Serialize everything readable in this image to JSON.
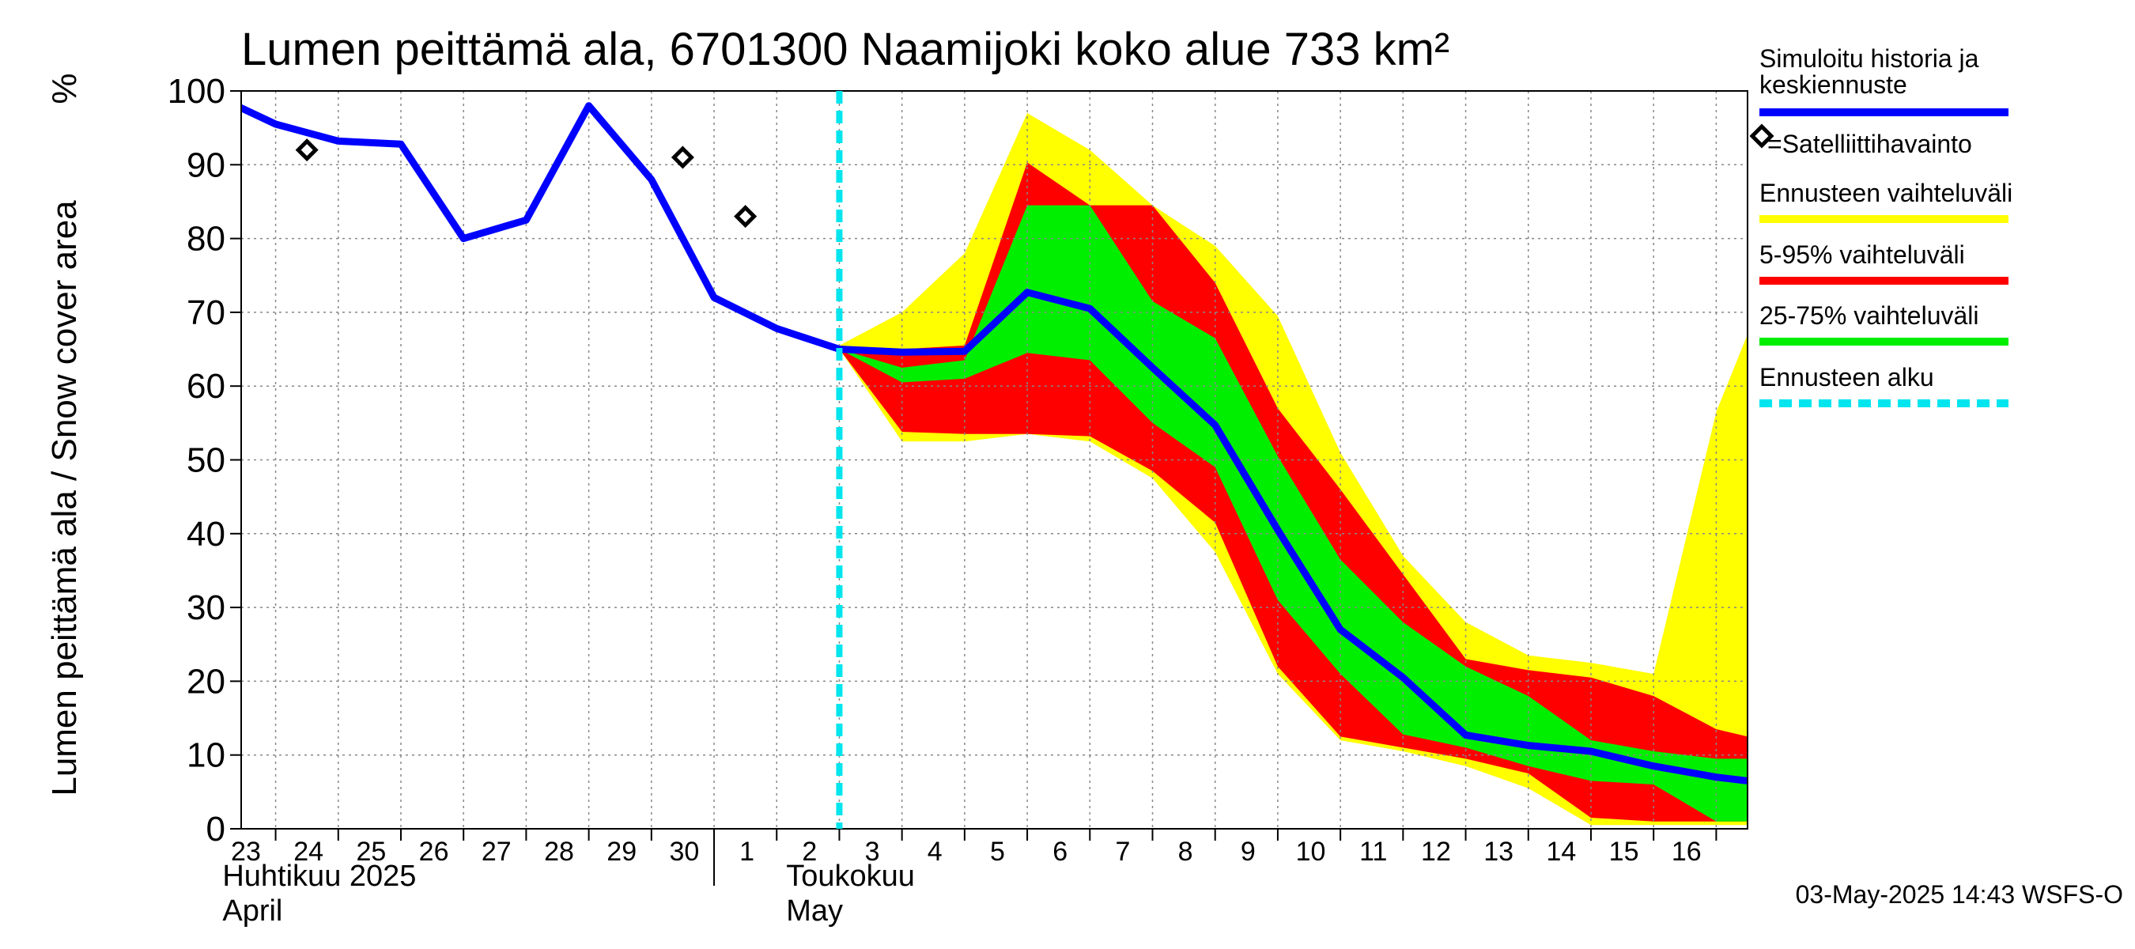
{
  "chart_data": {
    "type": "area",
    "title": "Lumen peittämä ala, 6701300 Naamijoki koko alue 733 km²",
    "ylabel": "Lumen peittämä ala / Snow cover area",
    "yunit": "%",
    "ylim": [
      0,
      100
    ],
    "yticks": [
      0,
      10,
      20,
      30,
      40,
      50,
      60,
      70,
      80,
      90,
      100
    ],
    "xlim": [
      -0.05,
      24.0
    ],
    "grid": true,
    "x_tick_labels": [
      {
        "x": 0,
        "label": "23"
      },
      {
        "x": 1,
        "label": "24"
      },
      {
        "x": 2,
        "label": "25"
      },
      {
        "x": 3,
        "label": "26"
      },
      {
        "x": 4,
        "label": "27"
      },
      {
        "x": 5,
        "label": "28"
      },
      {
        "x": 6,
        "label": "29"
      },
      {
        "x": 7,
        "label": "30"
      },
      {
        "x": 8,
        "label": "1"
      },
      {
        "x": 9,
        "label": "2"
      },
      {
        "x": 10,
        "label": "3"
      },
      {
        "x": 11,
        "label": "4"
      },
      {
        "x": 12,
        "label": "5"
      },
      {
        "x": 13,
        "label": "6"
      },
      {
        "x": 14,
        "label": "7"
      },
      {
        "x": 15,
        "label": "8"
      },
      {
        "x": 16,
        "label": "9"
      },
      {
        "x": 17,
        "label": "10"
      },
      {
        "x": 18,
        "label": "11"
      },
      {
        "x": 19,
        "label": "12"
      },
      {
        "x": 20,
        "label": "13"
      },
      {
        "x": 21,
        "label": "14"
      },
      {
        "x": 22,
        "label": "15"
      },
      {
        "x": 23,
        "label": "16"
      }
    ],
    "month_labels": [
      {
        "x": 0,
        "fi": "Huhtikuu  2025",
        "en": "April"
      },
      {
        "x": 9,
        "fi": "Toukokuu",
        "en": "May"
      }
    ],
    "month_divider_x": 7.5,
    "forecast_start_x": 10,
    "x_note": "x = days since 23 April 2025, gridlines at day boundaries",
    "series": [
      {
        "name": "Simuloitu historia ja keskiennuste",
        "color": "#0000ff",
        "x": [
          -0.5,
          0.5,
          1.5,
          2.5,
          3.5,
          4.5,
          5.5,
          6.5,
          7.5,
          8.5,
          9.5,
          10.5,
          11.5,
          12.5,
          13.5,
          14.5,
          15.5,
          16.5,
          17.5,
          18.5,
          19.5,
          20.5,
          21.5,
          22.5,
          23.5,
          24.0
        ],
        "y": [
          99.5,
          95.5,
          93.2,
          92.8,
          80,
          82.5,
          98,
          88,
          72,
          67.8,
          65,
          64.6,
          64.7,
          72.7,
          70.5,
          62.5,
          54.7,
          40.5,
          27,
          20.5,
          12.7,
          11.3,
          10.5,
          8.5,
          7,
          6.5
        ]
      }
    ],
    "satellite_observations": {
      "name": "=Satelliittihavainto",
      "x": [
        1.0,
        7.0,
        8.0
      ],
      "y": [
        92,
        91,
        83
      ]
    },
    "bands": [
      {
        "name": "Ennusteen vaihteluväli",
        "color": "#ffff00",
        "x": [
          9.5,
          10.5,
          11.5,
          12.5,
          13.5,
          14.5,
          15.5,
          16.5,
          17.5,
          18.5,
          19.5,
          20.5,
          21.5,
          22.5,
          23.5,
          24.0
        ],
        "lower": [
          65,
          52.5,
          52.5,
          53.5,
          52.5,
          47.5,
          37.5,
          21,
          12,
          10.5,
          8.5,
          5.5,
          0.5,
          0.5,
          0.5,
          0.5
        ],
        "upper": [
          65.5,
          70,
          78,
          97,
          92,
          84.5,
          79,
          69.5,
          51,
          37,
          28,
          23.5,
          22.5,
          21,
          56.5,
          67
        ]
      },
      {
        "name": "5-95% vaihteluväli",
        "color": "#ff0000",
        "x": [
          9.5,
          10.5,
          11.5,
          12.5,
          13.5,
          14.5,
          15.5,
          16.5,
          17.5,
          18.5,
          19.5,
          20.5,
          21.5,
          22.5,
          23.5,
          24.0
        ],
        "lower": [
          65,
          53.8,
          53.5,
          53.5,
          53.2,
          48.5,
          41.5,
          22,
          12.5,
          11,
          9.5,
          7.5,
          1.5,
          1,
          1,
          1
        ],
        "upper": [
          65.3,
          65,
          65.5,
          90.3,
          84.5,
          84.5,
          74,
          57,
          46,
          34.5,
          23,
          21.5,
          20.5,
          18,
          13.5,
          12.5
        ]
      },
      {
        "name": "25-75% vaihteluväli",
        "color": "#00ee00",
        "x": [
          9.5,
          10.5,
          11.5,
          12.5,
          13.5,
          14.5,
          15.5,
          16.5,
          17.5,
          18.5,
          19.5,
          20.5,
          21.5,
          22.5,
          23.5,
          24.0
        ],
        "lower": [
          65,
          60.5,
          61,
          64.5,
          63.5,
          55,
          49,
          31,
          21,
          12.8,
          11,
          8.5,
          6.5,
          6,
          1,
          1
        ],
        "upper": [
          65,
          62.5,
          63.5,
          84.5,
          84.5,
          71.5,
          66.5,
          50.5,
          36.5,
          28,
          22,
          18,
          12,
          10.5,
          9.5,
          9.5
        ]
      }
    ]
  },
  "legend": {
    "items": [
      {
        "label": "Simuloitu historia ja keskiennuste",
        "color": "#0000ff",
        "style": "line"
      },
      {
        "label": "=Satelliittihavainto",
        "color": "#000000",
        "style": "diamond"
      },
      {
        "label": "Ennusteen vaihteluväli",
        "color": "#ffff00",
        "style": "line"
      },
      {
        "label": "5-95% vaihteluväli",
        "color": "#ff0000",
        "style": "line"
      },
      {
        "label": "25-75% vaihteluväli",
        "color": "#00ee00",
        "style": "line"
      },
      {
        "label": "Ennusteen alku",
        "color": "#00e5ee",
        "style": "dashed"
      }
    ]
  },
  "footer": "03-May-2025 14:43 WSFS-O",
  "colors": {
    "grid": "#888888",
    "forecast_line": "#00e5ee",
    "axis": "#000000"
  }
}
